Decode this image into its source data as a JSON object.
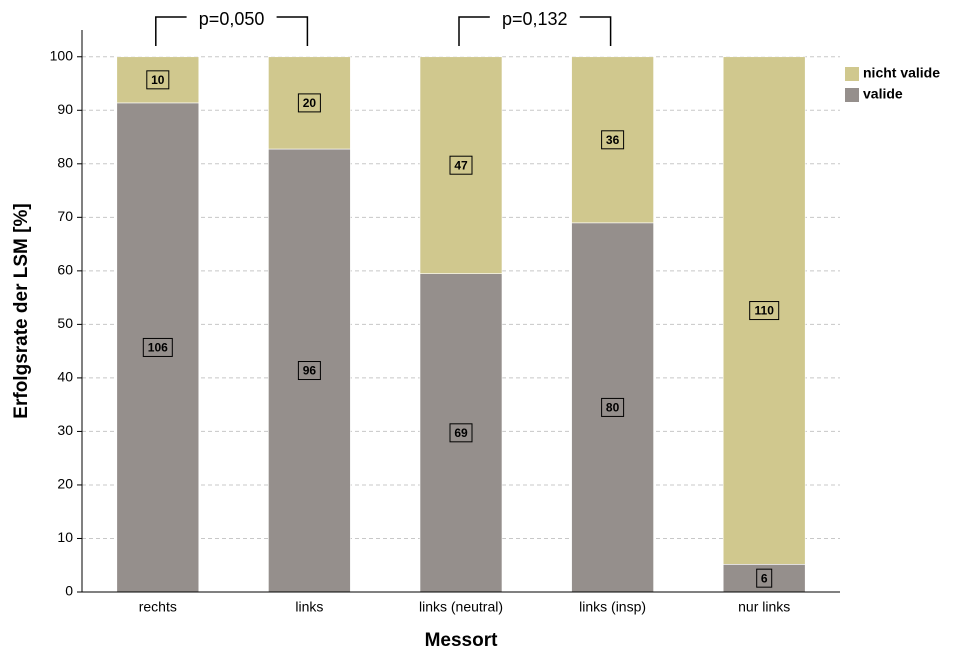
{
  "chart_data": {
    "type": "stacked_bar",
    "x_label": "Messort",
    "y_label": "Erfolgsrate der LSM [%]",
    "categories": [
      "rechts",
      "links",
      "links (neutral)",
      "links (insp)",
      "nur links"
    ],
    "series": [
      {
        "name": "valide",
        "color": "#958f8c",
        "values": [
          91.38,
          82.76,
          59.48,
          68.97,
          5.17
        ],
        "counts": [
          106,
          96,
          69,
          80,
          6
        ]
      },
      {
        "name": "nicht valide",
        "color": "#d0c88e",
        "values": [
          8.62,
          17.24,
          40.52,
          31.03,
          94.83
        ],
        "counts": [
          10,
          20,
          47,
          36,
          110
        ]
      }
    ],
    "annotations": [
      "p=0,050",
      "p=0,132"
    ],
    "ylim": [
      0,
      105
    ],
    "yticks": [
      0,
      10,
      20,
      30,
      40,
      50,
      60,
      70,
      80,
      90,
      100
    ],
    "grid": true,
    "legend": "right"
  }
}
